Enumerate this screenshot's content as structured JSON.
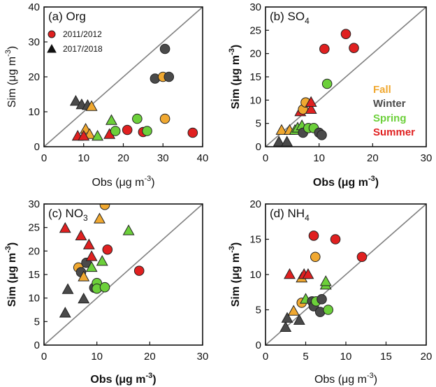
{
  "colors": {
    "Fall": "#f0a830",
    "Winter": "#4a4a4a",
    "Spring": "#6cd03a",
    "Summer": "#e02020",
    "line": "#808080"
  },
  "legend": {
    "years": [
      {
        "label": "2011/2012",
        "marker": "circle"
      },
      {
        "label": "2017/2018",
        "marker": "triangle"
      }
    ],
    "seasons": [
      {
        "label": "Fall",
        "color_key": "Fall"
      },
      {
        "label": "Winter",
        "color_key": "Winter"
      },
      {
        "label": "Spring",
        "color_key": "Spring"
      },
      {
        "label": "Summer",
        "color_key": "Summer"
      }
    ]
  },
  "chart_data": [
    {
      "type": "scatter",
      "title": "(a) Org",
      "xlabel": "Obs (μg m",
      "ylabel": "Sim (μg m",
      "unit_exp": "-3",
      "xlim": [
        0,
        40
      ],
      "ylim": [
        0,
        40
      ],
      "xticks": [
        0,
        10,
        20,
        30,
        40
      ],
      "yticks": [
        0,
        10,
        20,
        30,
        40
      ],
      "one_to_one": true,
      "points": [
        {
          "x": 8.0,
          "y": 13.0,
          "season": "Winter",
          "marker": "triangle"
        },
        {
          "x": 9.5,
          "y": 12.0,
          "season": "Winter",
          "marker": "triangle"
        },
        {
          "x": 11.0,
          "y": 11.8,
          "season": "Winter",
          "marker": "triangle"
        },
        {
          "x": 12.0,
          "y": 11.5,
          "season": "Fall",
          "marker": "triangle"
        },
        {
          "x": 10.5,
          "y": 5.0,
          "season": "Fall",
          "marker": "triangle"
        },
        {
          "x": 11.5,
          "y": 3.5,
          "season": "Fall",
          "marker": "triangle"
        },
        {
          "x": 8.5,
          "y": 3.0,
          "season": "Summer",
          "marker": "triangle"
        },
        {
          "x": 10.0,
          "y": 3.0,
          "season": "Summer",
          "marker": "triangle"
        },
        {
          "x": 13.5,
          "y": 3.0,
          "season": "Spring",
          "marker": "triangle"
        },
        {
          "x": 16.5,
          "y": 3.5,
          "season": "Summer",
          "marker": "triangle"
        },
        {
          "x": 17.0,
          "y": 7.5,
          "season": "Spring",
          "marker": "triangle"
        },
        {
          "x": 18.0,
          "y": 4.5,
          "season": "Spring",
          "marker": "circle"
        },
        {
          "x": 21.0,
          "y": 4.8,
          "season": "Summer",
          "marker": "circle"
        },
        {
          "x": 23.5,
          "y": 8.0,
          "season": "Spring",
          "marker": "circle"
        },
        {
          "x": 25.0,
          "y": 4.2,
          "season": "Summer",
          "marker": "circle"
        },
        {
          "x": 26.0,
          "y": 4.5,
          "season": "Spring",
          "marker": "circle"
        },
        {
          "x": 28.0,
          "y": 19.5,
          "season": "Winter",
          "marker": "circle"
        },
        {
          "x": 30.0,
          "y": 20.0,
          "season": "Fall",
          "marker": "circle"
        },
        {
          "x": 31.5,
          "y": 20.0,
          "season": "Winter",
          "marker": "circle"
        },
        {
          "x": 30.5,
          "y": 28.0,
          "season": "Winter",
          "marker": "circle"
        },
        {
          "x": 30.5,
          "y": 8.0,
          "season": "Fall",
          "marker": "circle"
        },
        {
          "x": 37.5,
          "y": 4.0,
          "season": "Summer",
          "marker": "circle"
        }
      ]
    },
    {
      "type": "scatter",
      "title": "(b) SO",
      "title_sub": "4",
      "xlabel": "Obs (μg m",
      "ylabel": "Sim (μg m",
      "unit_exp": "-3",
      "xlim": [
        0,
        30
      ],
      "ylim": [
        0,
        30
      ],
      "xticks": [
        0,
        10,
        20,
        30
      ],
      "yticks": [
        0,
        5,
        10,
        15,
        20,
        25,
        30
      ],
      "one_to_one": true,
      "points": [
        {
          "x": 2.5,
          "y": 1.0,
          "season": "Winter",
          "marker": "triangle"
        },
        {
          "x": 3.0,
          "y": 3.5,
          "season": "Fall",
          "marker": "triangle"
        },
        {
          "x": 4.0,
          "y": 1.0,
          "season": "Winter",
          "marker": "triangle"
        },
        {
          "x": 4.5,
          "y": 3.5,
          "season": "Fall",
          "marker": "triangle"
        },
        {
          "x": 5.5,
          "y": 3.5,
          "season": "Spring",
          "marker": "triangle"
        },
        {
          "x": 6.0,
          "y": 4.0,
          "season": "Spring",
          "marker": "triangle"
        },
        {
          "x": 6.5,
          "y": 7.5,
          "season": "Summer",
          "marker": "triangle"
        },
        {
          "x": 6.8,
          "y": 4.5,
          "season": "Spring",
          "marker": "triangle"
        },
        {
          "x": 7.0,
          "y": 3.0,
          "season": "Winter",
          "marker": "circle"
        },
        {
          "x": 7.0,
          "y": 8.0,
          "season": "Fall",
          "marker": "circle"
        },
        {
          "x": 7.5,
          "y": 9.5,
          "season": "Fall",
          "marker": "circle"
        },
        {
          "x": 8.0,
          "y": 4.0,
          "season": "Spring",
          "marker": "circle"
        },
        {
          "x": 8.5,
          "y": 8.0,
          "season": "Summer",
          "marker": "triangle"
        },
        {
          "x": 8.5,
          "y": 9.5,
          "season": "Summer",
          "marker": "triangle"
        },
        {
          "x": 9.0,
          "y": 4.0,
          "season": "Spring",
          "marker": "circle"
        },
        {
          "x": 10.0,
          "y": 3.0,
          "season": "Winter",
          "marker": "circle"
        },
        {
          "x": 10.5,
          "y": 2.5,
          "season": "Winter",
          "marker": "circle"
        },
        {
          "x": 11.0,
          "y": 21.0,
          "season": "Summer",
          "marker": "circle"
        },
        {
          "x": 11.5,
          "y": 13.5,
          "season": "Spring",
          "marker": "circle"
        },
        {
          "x": 15.0,
          "y": 24.2,
          "season": "Summer",
          "marker": "circle"
        },
        {
          "x": 16.5,
          "y": 21.2,
          "season": "Summer",
          "marker": "circle"
        }
      ]
    },
    {
      "type": "scatter",
      "title": "(c) NO",
      "title_sub": "3",
      "xlabel": "Obs (μg m",
      "ylabel": "Sim (μg m",
      "unit_exp": "-3",
      "xlim": [
        0,
        30
      ],
      "ylim": [
        0,
        30
      ],
      "xticks": [
        0,
        10,
        20,
        30
      ],
      "yticks": [
        0,
        5,
        10,
        15,
        20,
        25,
        30
      ],
      "one_to_one": true,
      "points": [
        {
          "x": 4.0,
          "y": 24.8,
          "season": "Summer",
          "marker": "triangle"
        },
        {
          "x": 4.0,
          "y": 6.8,
          "season": "Winter",
          "marker": "triangle"
        },
        {
          "x": 4.5,
          "y": 11.8,
          "season": "Winter",
          "marker": "triangle"
        },
        {
          "x": 6.5,
          "y": 16.5,
          "season": "Fall",
          "marker": "circle"
        },
        {
          "x": 7.0,
          "y": 15.5,
          "season": "Winter",
          "marker": "circle"
        },
        {
          "x": 7.0,
          "y": 23.2,
          "season": "Summer",
          "marker": "triangle"
        },
        {
          "x": 7.5,
          "y": 14.5,
          "season": "Fall",
          "marker": "triangle"
        },
        {
          "x": 7.5,
          "y": 9.8,
          "season": "Winter",
          "marker": "triangle"
        },
        {
          "x": 8.0,
          "y": 17.5,
          "season": "Winter",
          "marker": "circle"
        },
        {
          "x": 8.5,
          "y": 21.3,
          "season": "Summer",
          "marker": "triangle"
        },
        {
          "x": 9.0,
          "y": 16.5,
          "season": "Spring",
          "marker": "triangle"
        },
        {
          "x": 9.0,
          "y": 18.8,
          "season": "Summer",
          "marker": "triangle"
        },
        {
          "x": 9.5,
          "y": 12.2,
          "season": "Winter",
          "marker": "circle"
        },
        {
          "x": 10.0,
          "y": 13.2,
          "season": "Spring",
          "marker": "circle"
        },
        {
          "x": 10.0,
          "y": 12.0,
          "season": "Spring",
          "marker": "circle"
        },
        {
          "x": 10.5,
          "y": 26.8,
          "season": "Fall",
          "marker": "triangle"
        },
        {
          "x": 11.0,
          "y": 17.8,
          "season": "Spring",
          "marker": "triangle"
        },
        {
          "x": 11.5,
          "y": 29.8,
          "season": "Fall",
          "marker": "circle"
        },
        {
          "x": 11.5,
          "y": 12.3,
          "season": "Spring",
          "marker": "circle"
        },
        {
          "x": 12.0,
          "y": 20.3,
          "season": "Summer",
          "marker": "circle"
        },
        {
          "x": 16.0,
          "y": 24.3,
          "season": "Spring",
          "marker": "triangle"
        },
        {
          "x": 18.0,
          "y": 15.8,
          "season": "Summer",
          "marker": "circle"
        }
      ]
    },
    {
      "type": "scatter",
      "title": "(d) NH",
      "title_sub": "4",
      "xlabel": "Obs (μg m",
      "ylabel": "Sim (μg m",
      "unit_exp": "-3",
      "xlim": [
        0,
        20
      ],
      "ylim": [
        0,
        20
      ],
      "xticks": [
        0,
        5,
        10,
        15,
        20
      ],
      "yticks": [
        0,
        5,
        10,
        15,
        20
      ],
      "one_to_one": true,
      "points": [
        {
          "x": 2.5,
          "y": 2.5,
          "season": "Winter",
          "marker": "triangle"
        },
        {
          "x": 2.7,
          "y": 3.8,
          "season": "Winter",
          "marker": "triangle"
        },
        {
          "x": 3.5,
          "y": 4.8,
          "season": "Fall",
          "marker": "triangle"
        },
        {
          "x": 3.0,
          "y": 10.0,
          "season": "Summer",
          "marker": "triangle"
        },
        {
          "x": 4.2,
          "y": 3.5,
          "season": "Winter",
          "marker": "triangle"
        },
        {
          "x": 4.5,
          "y": 6.0,
          "season": "Fall",
          "marker": "circle"
        },
        {
          "x": 4.5,
          "y": 9.5,
          "season": "Fall",
          "marker": "triangle"
        },
        {
          "x": 4.8,
          "y": 10.0,
          "season": "Summer",
          "marker": "triangle"
        },
        {
          "x": 5.0,
          "y": 6.5,
          "season": "Spring",
          "marker": "triangle"
        },
        {
          "x": 5.3,
          "y": 10.0,
          "season": "Summer",
          "marker": "triangle"
        },
        {
          "x": 5.8,
          "y": 6.2,
          "season": "Winter",
          "marker": "circle"
        },
        {
          "x": 6.0,
          "y": 5.5,
          "season": "Winter",
          "marker": "circle"
        },
        {
          "x": 6.0,
          "y": 15.5,
          "season": "Summer",
          "marker": "circle"
        },
        {
          "x": 6.2,
          "y": 12.5,
          "season": "Fall",
          "marker": "circle"
        },
        {
          "x": 6.3,
          "y": 6.2,
          "season": "Spring",
          "marker": "circle"
        },
        {
          "x": 6.8,
          "y": 4.7,
          "season": "Winter",
          "marker": "circle"
        },
        {
          "x": 7.0,
          "y": 6.5,
          "season": "Winter",
          "marker": "circle"
        },
        {
          "x": 7.5,
          "y": 8.5,
          "season": "Spring",
          "marker": "triangle"
        },
        {
          "x": 7.5,
          "y": 9.0,
          "season": "Spring",
          "marker": "triangle"
        },
        {
          "x": 7.8,
          "y": 5.0,
          "season": "Spring",
          "marker": "circle"
        },
        {
          "x": 8.7,
          "y": 15.0,
          "season": "Summer",
          "marker": "circle"
        },
        {
          "x": 12.0,
          "y": 12.5,
          "season": "Summer",
          "marker": "circle"
        }
      ]
    }
  ]
}
